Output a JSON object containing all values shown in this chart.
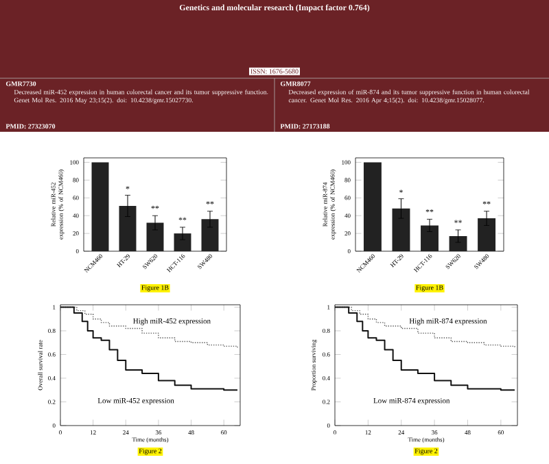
{
  "chart_data": [
    {
      "type": "other",
      "title": "Genetics and molecular research (Impact factor 0.764)",
      "annotations": [
        "ISSN: 1676-5680",
        "GMR7730",
        "Decreased miR-452 expression in human colorectal cancer and its tumor suppressive function. Genet Mol Res. 2016 May 23;15(2). doi: 10.4238/gmr.15027730.",
        "PMID: 27323070",
        "GMR8077",
        "Decreased expression of miR-874 and its tumor suppressive function in human colorectal cancer. Genet Mol Res. 2016 Apr 4;15(2). doi: 10.4238/gmr.15028077.",
        "PMID: 27173188"
      ]
    },
    {
      "type": "bar",
      "ylabel": "Relative miR-452 expression (% of NCM460)",
      "categories": [
        "NCM460",
        "HT-29",
        "SW620",
        "HCT-116",
        "SW480"
      ],
      "values": [
        100,
        51,
        32,
        20,
        36
      ],
      "errors": [
        null,
        12,
        8,
        7,
        9
      ],
      "color": "#222222",
      "ylim": [
        0,
        105
      ],
      "yticks": [
        0,
        20,
        40,
        60,
        80,
        100
      ],
      "annotations": [
        {
          "text": "*",
          "x": "HT-29",
          "y": 66
        },
        {
          "text": "**",
          "x": "SW620",
          "y": 44
        },
        {
          "text": "**",
          "x": "HCT-116",
          "y": 31
        },
        {
          "text": "**",
          "x": "SW480",
          "y": 49
        },
        "Figure 1B"
      ]
    },
    {
      "type": "bar",
      "ylabel": "Relative miR-874 expression (% of NCM460)",
      "categories": [
        "NCM460",
        "HT-29",
        "HCT-116",
        "SW620",
        "SW480"
      ],
      "values": [
        100,
        48,
        29,
        17,
        37
      ],
      "errors": [
        null,
        11,
        7,
        7,
        8
      ],
      "color": "#222222",
      "ylim": [
        0,
        105
      ],
      "yticks": [
        0,
        20,
        40,
        60,
        80,
        100
      ],
      "annotations": [
        {
          "text": "*",
          "x": "HT-29",
          "y": 62
        },
        {
          "text": "**",
          "x": "HCT-116",
          "y": 40
        },
        {
          "text": "**",
          "x": "SW620",
          "y": 28
        },
        {
          "text": "**",
          "x": "SW480",
          "y": 49
        },
        "Figure 1B"
      ]
    },
    {
      "type": "step",
      "xlabel": "Time (months)",
      "ylabel": "Overall survival rate",
      "xlim": [
        0,
        66
      ],
      "xticks": [
        0,
        12,
        24,
        36,
        48,
        60
      ],
      "ylim": [
        0,
        1.02
      ],
      "yticks": [
        0,
        0.2,
        0.4,
        0.6,
        0.8,
        1
      ],
      "series": [
        {
          "name": "High miR-452 expression",
          "color": "#555555",
          "line_style": "dotted",
          "x": [
            0,
            4,
            6,
            9,
            12,
            15,
            18,
            24,
            30,
            36,
            42,
            48,
            54,
            60,
            65
          ],
          "values": [
            1,
            1,
            0.97,
            0.94,
            0.9,
            0.87,
            0.84,
            0.82,
            0.78,
            0.74,
            0.71,
            0.7,
            0.68,
            0.67,
            0.65
          ]
        },
        {
          "name": "Low miR-452 expression",
          "color": "#111111",
          "line_style": "solid",
          "x": [
            0,
            3,
            5,
            8,
            10,
            12,
            15,
            18,
            21,
            24,
            30,
            36,
            42,
            48,
            54,
            60,
            65
          ],
          "values": [
            1,
            1,
            0.95,
            0.88,
            0.8,
            0.74,
            0.72,
            0.64,
            0.55,
            0.47,
            0.44,
            0.38,
            0.34,
            0.31,
            0.31,
            0.3,
            0.3
          ]
        }
      ],
      "annotations": [
        "Figure 2"
      ]
    },
    {
      "type": "step",
      "xlabel": "Time (months)",
      "ylabel": "Proportion surviving",
      "xlim": [
        0,
        66
      ],
      "xticks": [
        0,
        12,
        24,
        36,
        48,
        60
      ],
      "ylim": [
        0,
        1.02
      ],
      "yticks": [
        0,
        0.2,
        0.4,
        0.6,
        0.8,
        1
      ],
      "series": [
        {
          "name": "High miR-874 expression",
          "color": "#555555",
          "line_style": "dotted",
          "x": [
            0,
            4,
            6,
            9,
            12,
            15,
            18,
            24,
            30,
            36,
            42,
            48,
            54,
            60,
            65
          ],
          "values": [
            1,
            1,
            0.97,
            0.94,
            0.9,
            0.87,
            0.84,
            0.82,
            0.78,
            0.74,
            0.71,
            0.7,
            0.68,
            0.67,
            0.65
          ]
        },
        {
          "name": "Low miR-874 expression",
          "color": "#111111",
          "line_style": "solid",
          "x": [
            0,
            3,
            5,
            8,
            10,
            12,
            15,
            18,
            21,
            24,
            30,
            36,
            42,
            48,
            54,
            60,
            65
          ],
          "values": [
            1,
            1,
            0.95,
            0.88,
            0.8,
            0.74,
            0.72,
            0.64,
            0.55,
            0.47,
            0.44,
            0.38,
            0.34,
            0.31,
            0.31,
            0.3,
            0.3
          ]
        }
      ],
      "annotations": [
        "Figure 2"
      ]
    }
  ]
}
